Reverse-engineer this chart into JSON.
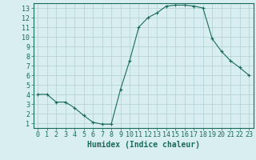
{
  "x": [
    0,
    1,
    2,
    3,
    4,
    5,
    6,
    7,
    8,
    9,
    10,
    11,
    12,
    13,
    14,
    15,
    16,
    17,
    18,
    19,
    20,
    21,
    22,
    23
  ],
  "y": [
    4.0,
    4.0,
    3.2,
    3.2,
    2.6,
    1.8,
    1.1,
    0.9,
    0.9,
    4.5,
    7.5,
    11.0,
    12.0,
    12.5,
    13.2,
    13.3,
    13.3,
    13.2,
    13.0,
    9.8,
    8.5,
    7.5,
    6.8,
    6.0
  ],
  "line_color": "#1a6b5a",
  "marker": "+",
  "marker_size": 3,
  "marker_linewidth": 0.8,
  "line_width": 0.8,
  "bg_color": "#d8eef0",
  "grid_color": "#b0cfd4",
  "xlabel": "Humidex (Indice chaleur)",
  "xlim": [
    -0.5,
    23.5
  ],
  "ylim": [
    0.5,
    13.5
  ],
  "xticks": [
    0,
    1,
    2,
    3,
    4,
    5,
    6,
    7,
    8,
    9,
    10,
    11,
    12,
    13,
    14,
    15,
    16,
    17,
    18,
    19,
    20,
    21,
    22,
    23
  ],
  "yticks": [
    1,
    2,
    3,
    4,
    5,
    6,
    7,
    8,
    9,
    10,
    11,
    12,
    13
  ],
  "tick_color": "#1a6b5a",
  "axis_color": "#1a6b5a",
  "xlabel_fontsize": 7,
  "tick_fontsize": 6
}
